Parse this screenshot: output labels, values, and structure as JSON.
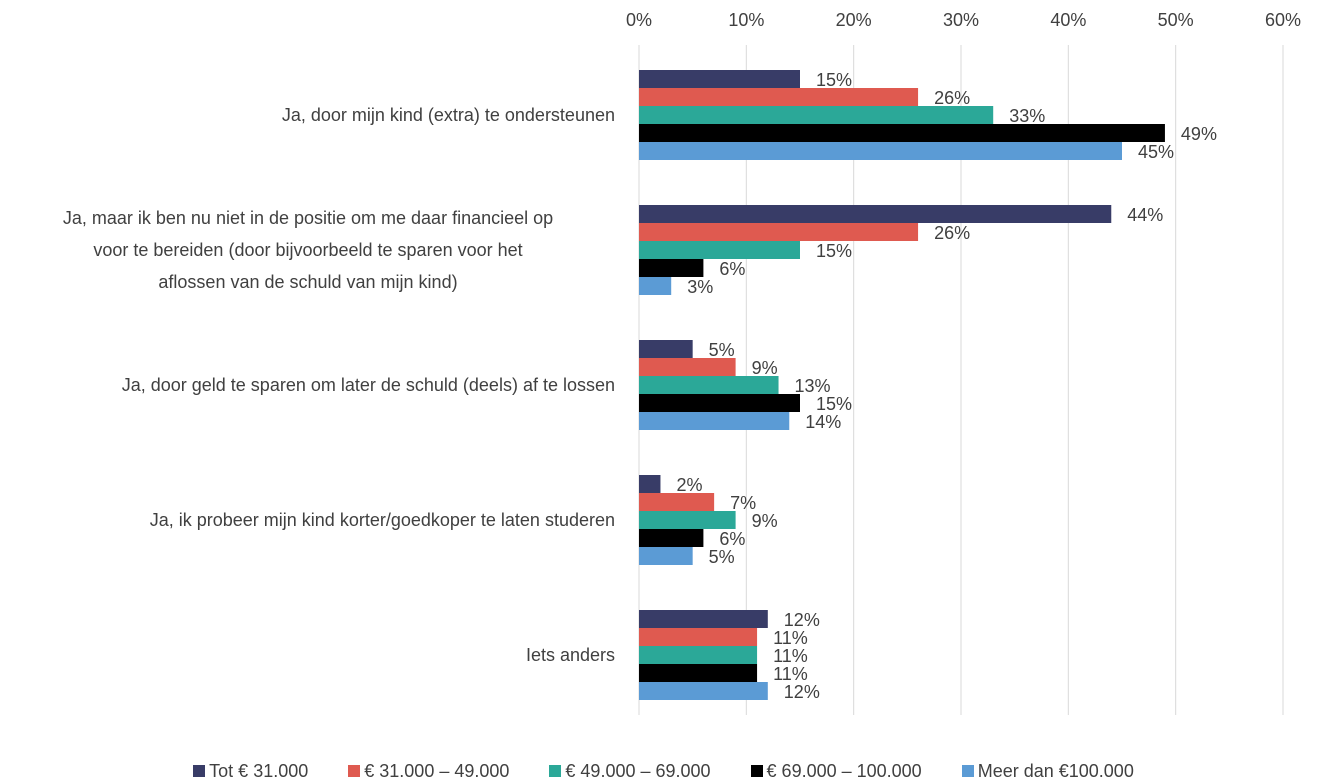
{
  "chart_data": {
    "type": "bar",
    "orientation": "horizontal",
    "categories": [
      "Ja, door mijn kind (extra) te ondersteunen",
      "Ja, maar ik ben nu niet in de positie om me daar financieel op voor te bereiden (door bijvoorbeeld te sparen voor het aflossen van de schuld van mijn kind)",
      "Ja, door geld te sparen om later de schuld (deels) af te lossen",
      "Ja, ik probeer mijn kind korter/goedkoper te laten studeren",
      "Iets anders"
    ],
    "category_lines": [
      [
        "Ja, door mijn kind (extra) te ondersteunen"
      ],
      [
        "Ja, maar ik ben nu niet in de positie om me daar financieel op",
        "voor te bereiden (door bijvoorbeeld te sparen voor het",
        "aflossen van de schuld van mijn kind)"
      ],
      [
        "Ja, door geld te sparen om later de schuld (deels) af te lossen"
      ],
      [
        "Ja, ik probeer mijn kind korter/goedkoper te laten studeren"
      ],
      [
        "Iets anders"
      ]
    ],
    "series": [
      {
        "name": "Tot € 31.000",
        "color": "#383C67",
        "values": [
          15,
          44,
          5,
          2,
          12
        ]
      },
      {
        "name": "€ 31.000 – 49.000",
        "color": "#DF5A50",
        "values": [
          26,
          26,
          9,
          7,
          11
        ]
      },
      {
        "name": "€ 49.000 – 69.000",
        "color": "#2BA898",
        "values": [
          33,
          15,
          13,
          9,
          11
        ]
      },
      {
        "name": "€ 69.000 – 100.000",
        "color": "#000000",
        "values": [
          49,
          6,
          15,
          6,
          11
        ]
      },
      {
        "name": "Meer dan  €100.000",
        "color": "#5B9BD5",
        "values": [
          45,
          3,
          14,
          5,
          12
        ]
      }
    ],
    "xlim": [
      0,
      60
    ],
    "x_ticks": [
      "0%",
      "10%",
      "20%",
      "30%",
      "40%",
      "50%",
      "60%"
    ],
    "value_suffix": "%",
    "grid": true,
    "axis_position": "top",
    "legend_position": "bottom",
    "title": "",
    "xlabel": "",
    "ylabel": ""
  }
}
